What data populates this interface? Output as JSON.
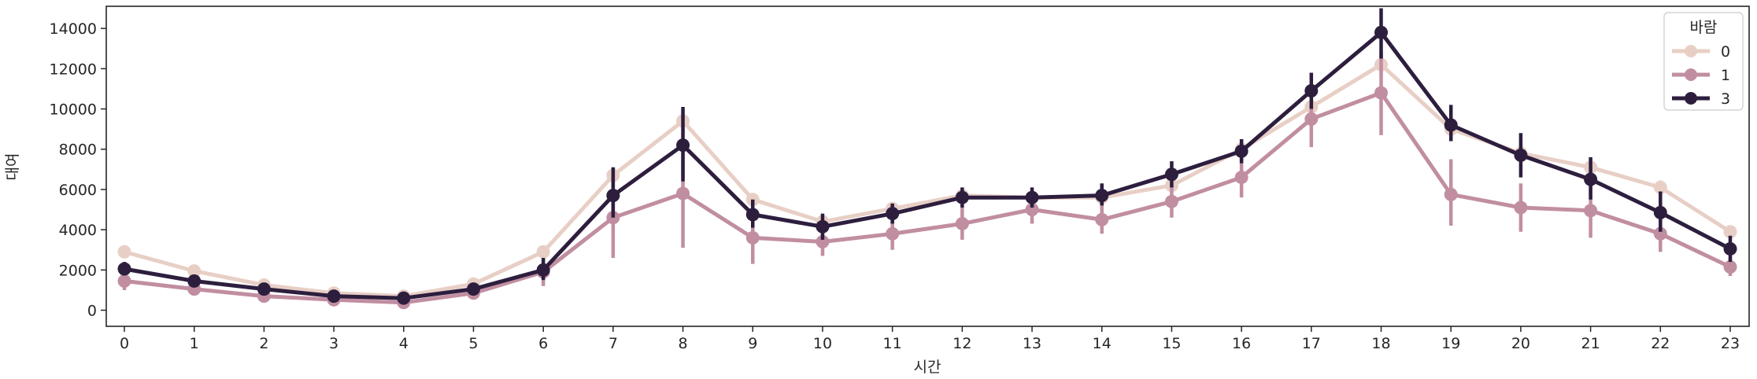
{
  "chart_data": {
    "type": "line",
    "title": "",
    "xlabel": "시간",
    "ylabel": "대여",
    "categories": [
      "0",
      "1",
      "2",
      "3",
      "4",
      "5",
      "6",
      "7",
      "8",
      "9",
      "10",
      "11",
      "12",
      "13",
      "14",
      "15",
      "16",
      "17",
      "18",
      "19",
      "20",
      "21",
      "22",
      "23"
    ],
    "yticks": [
      0,
      2000,
      4000,
      6000,
      8000,
      10000,
      12000,
      14000
    ],
    "ylim": [
      -800,
      15100
    ],
    "grid": false,
    "legend": {
      "title": "바람",
      "placement": "top-right"
    },
    "series": [
      {
        "name": "0",
        "color": "#e8cfc6",
        "values": [
          2900,
          1950,
          1250,
          850,
          700,
          1300,
          2900,
          6700,
          9400,
          5500,
          4400,
          5050,
          5700,
          5600,
          5600,
          6200,
          8000,
          10100,
          12200,
          9000,
          7800,
          7100,
          6100,
          3900
        ],
        "err": [
          [
            2700,
            3100
          ],
          [
            1800,
            2100
          ],
          [
            1100,
            1400
          ],
          [
            750,
            950
          ],
          [
            600,
            800
          ],
          [
            1150,
            1450
          ],
          [
            2650,
            3150
          ],
          [
            6300,
            7100
          ],
          [
            8900,
            9900
          ],
          [
            5200,
            5800
          ],
          [
            4150,
            4650
          ],
          [
            4800,
            5300
          ],
          [
            5450,
            5950
          ],
          [
            5350,
            5850
          ],
          [
            5350,
            5850
          ],
          [
            5900,
            6500
          ],
          [
            7650,
            8350
          ],
          [
            9600,
            10600
          ],
          [
            11700,
            12700
          ],
          [
            8600,
            9400
          ],
          [
            7450,
            8150
          ],
          [
            6750,
            7450
          ],
          [
            5750,
            6450
          ],
          [
            3650,
            4150
          ]
        ]
      },
      {
        "name": "1",
        "color": "#c18ea1",
        "values": [
          1450,
          1050,
          700,
          520,
          380,
          850,
          1900,
          4600,
          5800,
          3600,
          3400,
          3800,
          4300,
          5000,
          4500,
          5400,
          6600,
          9500,
          10800,
          5750,
          5100,
          4950,
          3800,
          2150
        ],
        "err": [
          [
            1000,
            1800
          ],
          [
            800,
            1300
          ],
          [
            500,
            900
          ],
          [
            350,
            700
          ],
          [
            200,
            550
          ],
          [
            650,
            1050
          ],
          [
            1200,
            2500
          ],
          [
            2600,
            6700
          ],
          [
            3100,
            8300
          ],
          [
            2300,
            5000
          ],
          [
            2700,
            4200
          ],
          [
            3000,
            4600
          ],
          [
            3500,
            5100
          ],
          [
            4300,
            5600
          ],
          [
            3800,
            5200
          ],
          [
            4600,
            6200
          ],
          [
            5600,
            7700
          ],
          [
            8100,
            10900
          ],
          [
            8700,
            12800
          ],
          [
            4200,
            7500
          ],
          [
            3900,
            6300
          ],
          [
            3600,
            6200
          ],
          [
            2900,
            4800
          ],
          [
            1700,
            2600
          ]
        ]
      },
      {
        "name": "3",
        "color": "#2d1e3e",
        "values": [
          2050,
          1450,
          1050,
          700,
          600,
          1050,
          2000,
          5700,
          8200,
          4750,
          4150,
          4800,
          5600,
          5600,
          5700,
          6750,
          7900,
          10900,
          13800,
          9200,
          7700,
          6500,
          4850,
          3050
        ],
        "err": [
          [
            1750,
            2400
          ],
          [
            1250,
            1650
          ],
          [
            900,
            1200
          ],
          [
            550,
            850
          ],
          [
            450,
            750
          ],
          [
            900,
            1250
          ],
          [
            1500,
            2600
          ],
          [
            4600,
            7100
          ],
          [
            6400,
            10100
          ],
          [
            4100,
            5500
          ],
          [
            3500,
            4800
          ],
          [
            4300,
            5300
          ],
          [
            5100,
            6100
          ],
          [
            5100,
            6100
          ],
          [
            5200,
            6300
          ],
          [
            6100,
            7400
          ],
          [
            7300,
            8500
          ],
          [
            10000,
            11800
          ],
          [
            12500,
            15000
          ],
          [
            8400,
            10200
          ],
          [
            6600,
            8800
          ],
          [
            5500,
            7600
          ],
          [
            3900,
            5900
          ],
          [
            2400,
            3700
          ]
        ]
      }
    ]
  }
}
